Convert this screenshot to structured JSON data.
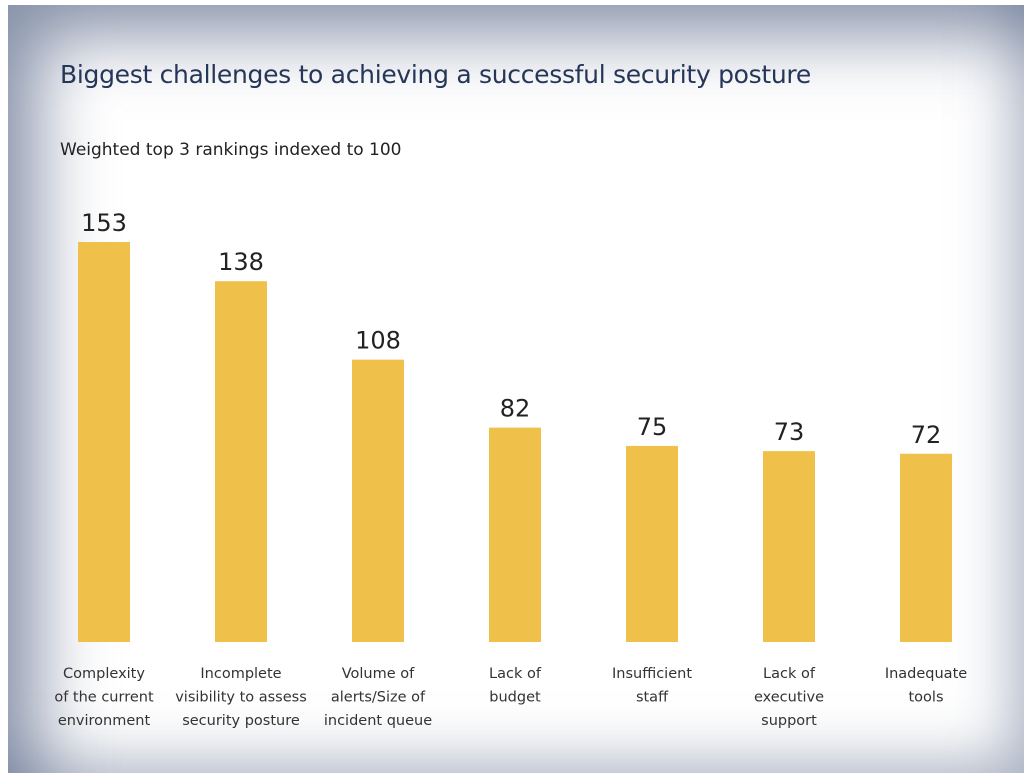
{
  "chart_data": {
    "type": "bar",
    "title": "Biggest challenges to achieving a successful security posture",
    "subtitle": "Weighted top 3 rankings indexed to 100",
    "categories": [
      [
        "Complexity",
        "of the current",
        "environment"
      ],
      [
        "Incomplete",
        "visibility to assess",
        "security posture"
      ],
      [
        "Volume of",
        "alerts/Size of",
        "incident queue"
      ],
      [
        "Lack of",
        "budget"
      ],
      [
        "Insufficient",
        "staff"
      ],
      [
        "Lack of",
        "executive",
        "support"
      ],
      [
        "Inadequate",
        "tools"
      ]
    ],
    "values": [
      153,
      138,
      108,
      82,
      75,
      73,
      72
    ],
    "data_labels": [
      "153",
      "138",
      "108",
      "82",
      "75",
      "73",
      "72"
    ],
    "bar_color": "#efc14a",
    "title_color": "#263659",
    "ylim": [
      0,
      153
    ],
    "grid": false,
    "legend": "none",
    "xlabel": "",
    "ylabel": ""
  }
}
